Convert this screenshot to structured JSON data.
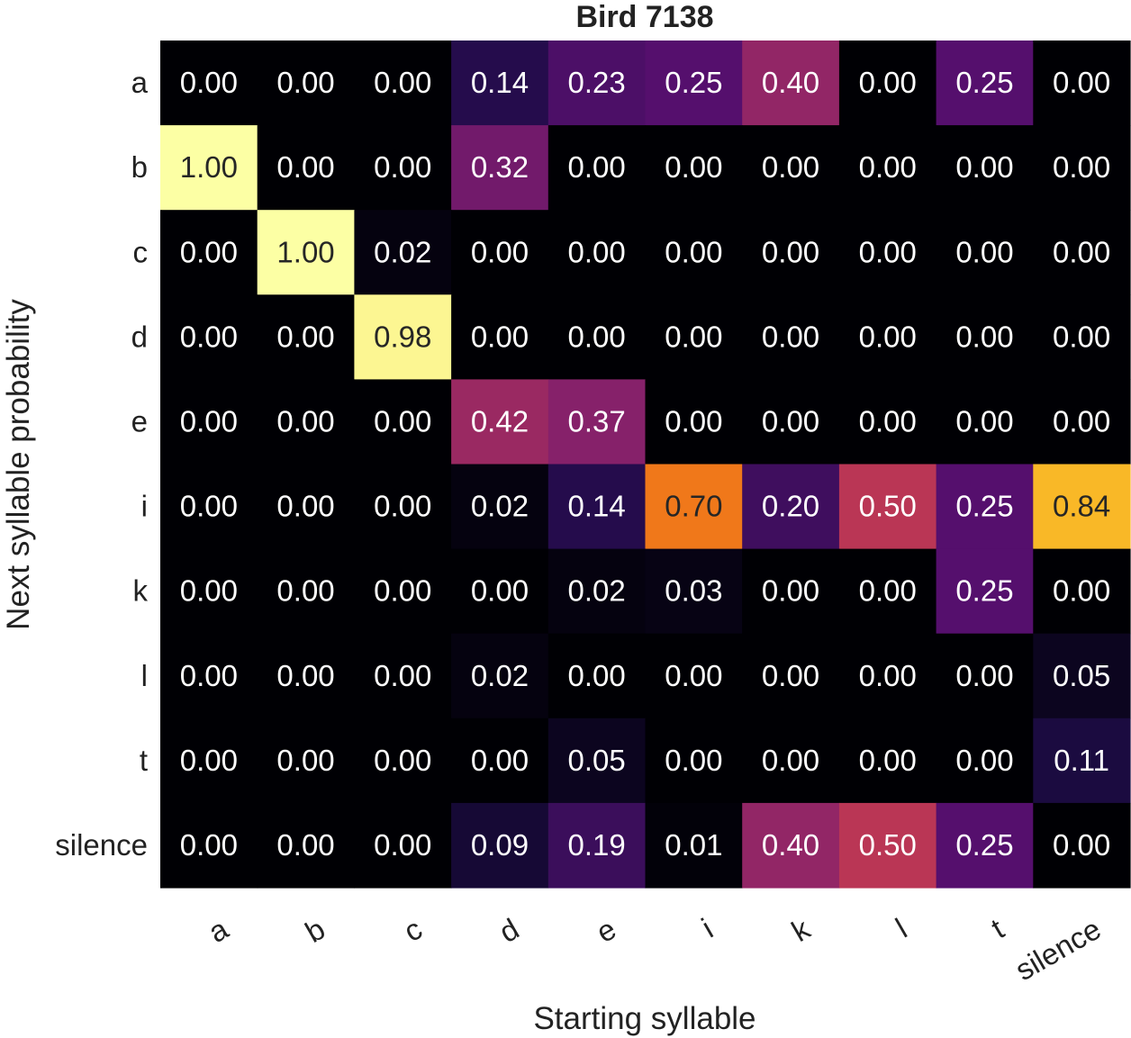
{
  "chart_data": {
    "type": "heatmap",
    "title": "Bird 7138",
    "xlabel": "Starting syllable",
    "ylabel": "Next syllable probability",
    "x_categories": [
      "a",
      "b",
      "c",
      "d",
      "e",
      "i",
      "k",
      "l",
      "t",
      "silence"
    ],
    "y_categories": [
      "a",
      "b",
      "c",
      "d",
      "e",
      "i",
      "k",
      "l",
      "t",
      "silence"
    ],
    "colormap": "inferno",
    "value_range": [
      0,
      1
    ],
    "grid": false,
    "values": [
      [
        0.0,
        0.0,
        0.0,
        0.14,
        0.23,
        0.25,
        0.4,
        0.0,
        0.25,
        0.0
      ],
      [
        1.0,
        0.0,
        0.0,
        0.32,
        0.0,
        0.0,
        0.0,
        0.0,
        0.0,
        0.0
      ],
      [
        0.0,
        1.0,
        0.02,
        0.0,
        0.0,
        0.0,
        0.0,
        0.0,
        0.0,
        0.0
      ],
      [
        0.0,
        0.0,
        0.98,
        0.0,
        0.0,
        0.0,
        0.0,
        0.0,
        0.0,
        0.0
      ],
      [
        0.0,
        0.0,
        0.0,
        0.42,
        0.37,
        0.0,
        0.0,
        0.0,
        0.0,
        0.0
      ],
      [
        0.0,
        0.0,
        0.0,
        0.02,
        0.14,
        0.7,
        0.2,
        0.5,
        0.25,
        0.84
      ],
      [
        0.0,
        0.0,
        0.0,
        0.0,
        0.02,
        0.03,
        0.0,
        0.0,
        0.25,
        0.0
      ],
      [
        0.0,
        0.0,
        0.0,
        0.02,
        0.0,
        0.0,
        0.0,
        0.0,
        0.0,
        0.05
      ],
      [
        0.0,
        0.0,
        0.0,
        0.0,
        0.05,
        0.0,
        0.0,
        0.0,
        0.0,
        0.11
      ],
      [
        0.0,
        0.0,
        0.0,
        0.09,
        0.19,
        0.01,
        0.4,
        0.5,
        0.25,
        0.0
      ]
    ]
  }
}
